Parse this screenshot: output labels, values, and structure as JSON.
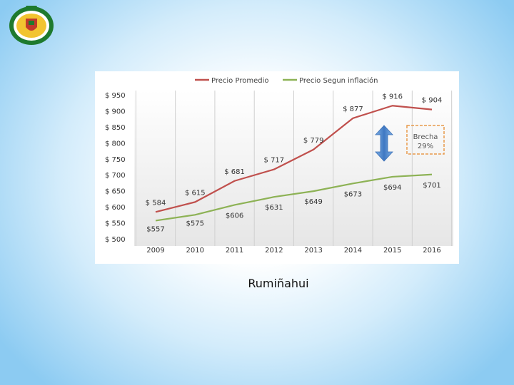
{
  "slide": {
    "caption": "Rumiñahui"
  },
  "logo": {
    "icon": "university-seal-icon",
    "colors": {
      "ring": "#1e7a2e",
      "inner": "#f2c430",
      "shield": "#c0392b"
    }
  },
  "chart_data": {
    "type": "line",
    "title": "",
    "xlabel": "",
    "ylabel": "",
    "categories": [
      "2009",
      "2010",
      "2011",
      "2012",
      "2013",
      "2014",
      "2015",
      "2016"
    ],
    "ylim": [
      500,
      950
    ],
    "yticks": [
      "$ 950",
      "$ 900",
      "$ 850",
      "$ 800",
      "$ 750",
      "$ 700",
      "$ 650",
      "$ 600",
      "$ 550",
      "$ 500"
    ],
    "grid": "vertical",
    "legend_position": "top",
    "series": [
      {
        "name": "Precio Promedio",
        "color": "#c0504d",
        "values": [
          584,
          615,
          681,
          717,
          779,
          877,
          916,
          904
        ],
        "labels": [
          "$ 584",
          "$ 615",
          "$ 681",
          "$ 717",
          "$ 779",
          "$ 877",
          "$ 916",
          "$ 904"
        ]
      },
      {
        "name": "Precio Segun inflación",
        "color": "#8db255",
        "values": [
          557,
          575,
          606,
          631,
          649,
          673,
          694,
          701
        ],
        "labels": [
          "$557",
          "$575",
          "$606",
          "$631",
          "$649",
          "$673",
          "$694",
          "$701"
        ]
      }
    ],
    "annotation": {
      "label": "Brecha",
      "value": "29%",
      "arrow_color": "#4a86c8",
      "box_color": "#e89a4c"
    }
  }
}
